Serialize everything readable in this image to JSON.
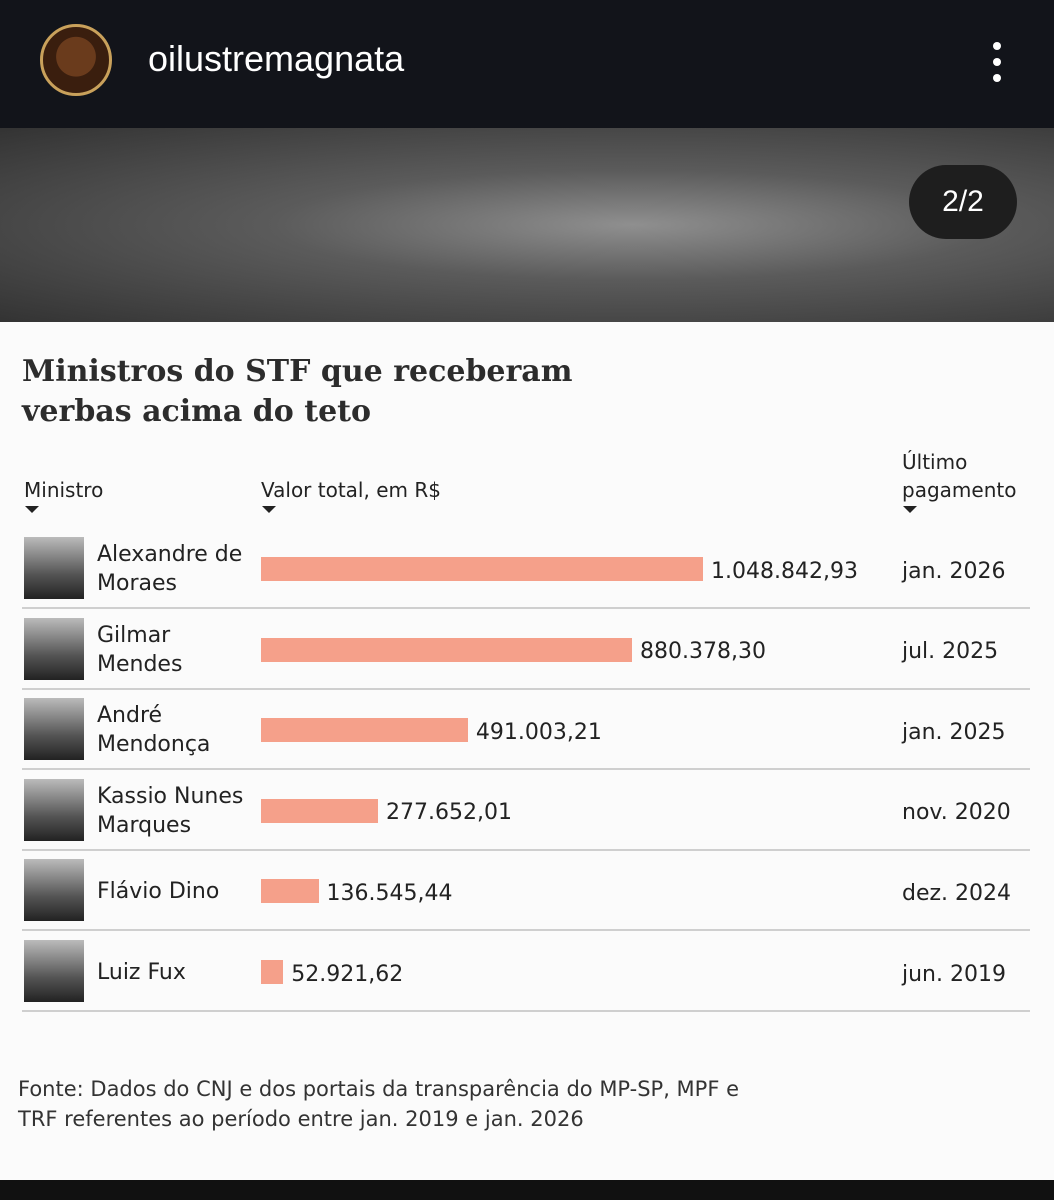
{
  "header": {
    "username": "oilustremagnata",
    "counter": "2/2"
  },
  "chart_data": {
    "type": "bar",
    "orientation": "horizontal",
    "title": "Ministros do STF que receberam verbas acima do teto",
    "columns": [
      "Ministro",
      "Valor total, em R$",
      "Último pagamento"
    ],
    "categories": [
      "Alexandre de Moraes",
      "Gilmar Mendes",
      "André Mendonça",
      "Kassio Nunes Marques",
      "Flávio Dino",
      "Luiz Fux"
    ],
    "values": [
      1048842.93,
      880378.3,
      491003.21,
      277652.01,
      136545.44,
      52921.62
    ],
    "value_labels": [
      "1.048.842,93",
      "880.378,30",
      "491.003,21",
      "277.652,01",
      "136.545,44",
      "52.921,62"
    ],
    "last_payment": [
      "jan. 2026",
      "jul. 2025",
      "jan. 2025",
      "nov. 2020",
      "dez. 2024",
      "jun. 2019"
    ],
    "color": "#f5a08a",
    "source": "Fonte: Dados do CNJ e dos portais da transparência do MP-SP, MPF e TRF referentes ao período entre jan. 2019 e jan. 2026"
  }
}
